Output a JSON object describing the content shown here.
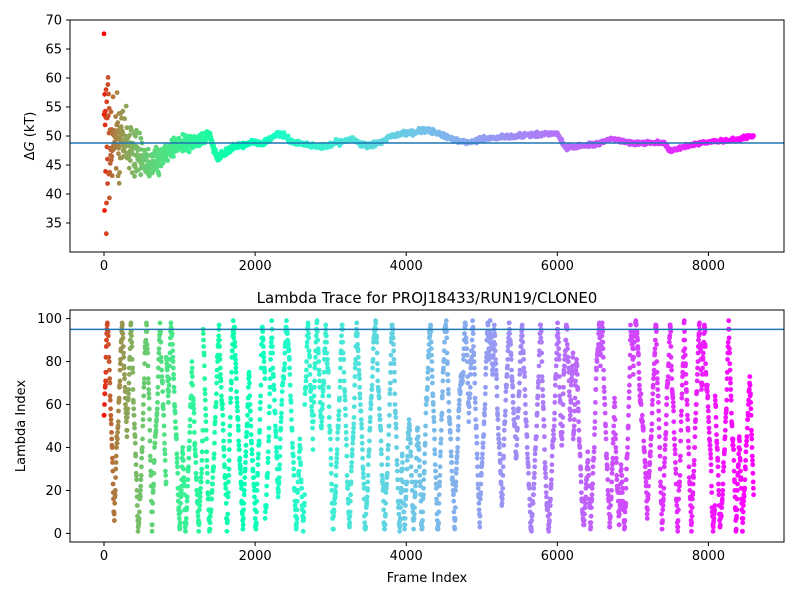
{
  "chart_data": [
    {
      "type": "scatter",
      "title": "",
      "xlabel": "",
      "ylabel": "ΔG (kT)",
      "xlim": [
        -450,
        9000
      ],
      "ylim": [
        30,
        70
      ],
      "xticks": [
        0,
        2000,
        4000,
        6000,
        8000
      ],
      "xtick_labels": [
        "0",
        "2000",
        "4000",
        "6000",
        "8000"
      ],
      "yticks": [
        35,
        40,
        45,
        50,
        55,
        60,
        65,
        70
      ],
      "ytick_labels": [
        "35",
        "40",
        "45",
        "50",
        "55",
        "60",
        "65",
        "70"
      ],
      "hline": 48.8,
      "hline_color": "#1f77b4",
      "colormap": "rainbow (frame index: red at 0 → violet at end)",
      "n_frames": 8600,
      "trace_knots": [
        [
          0,
          48
        ],
        [
          200,
          50
        ],
        [
          400,
          47
        ],
        [
          600,
          45
        ],
        [
          800,
          47
        ],
        [
          1000,
          48.5
        ],
        [
          1200,
          49
        ],
        [
          1400,
          50
        ],
        [
          1500,
          46
        ],
        [
          1700,
          48
        ],
        [
          2000,
          49
        ],
        [
          2100,
          48.5
        ],
        [
          2300,
          50.5
        ],
        [
          2500,
          49
        ],
        [
          2700,
          48.5
        ],
        [
          2900,
          48
        ],
        [
          3100,
          49
        ],
        [
          3300,
          49.5
        ],
        [
          3400,
          48.5
        ],
        [
          3600,
          48.5
        ],
        [
          3800,
          50
        ],
        [
          4000,
          50.5
        ],
        [
          4300,
          51
        ],
        [
          4600,
          49.5
        ],
        [
          4800,
          48.8
        ],
        [
          5000,
          49.5
        ],
        [
          5500,
          50
        ],
        [
          6000,
          50.5
        ],
        [
          6100,
          48
        ],
        [
          6500,
          48.5
        ],
        [
          6700,
          49.5
        ],
        [
          7000,
          48.8
        ],
        [
          7400,
          48.8
        ],
        [
          7500,
          47.5
        ],
        [
          7800,
          48.5
        ],
        [
          8000,
          49
        ],
        [
          8300,
          49.3
        ],
        [
          8600,
          50
        ]
      ],
      "early_spread": [
        [
          0,
          20
        ],
        [
          100,
          9
        ],
        [
          200,
          7
        ],
        [
          300,
          5
        ],
        [
          500,
          3
        ],
        [
          700,
          2
        ],
        [
          1000,
          1.5
        ],
        [
          1500,
          0.8
        ],
        [
          2000,
          0.5
        ],
        [
          8600,
          0.3
        ]
      ]
    },
    {
      "type": "scatter",
      "title": "Lambda Trace for PROJ18433/RUN19/CLONE0",
      "xlabel": "Frame Index",
      "ylabel": "Lambda Index",
      "xlim": [
        -450,
        9000
      ],
      "ylim": [
        -4,
        104
      ],
      "xticks": [
        0,
        2000,
        4000,
        6000,
        8000
      ],
      "xtick_labels": [
        "0",
        "2000",
        "4000",
        "6000",
        "8000"
      ],
      "yticks": [
        0,
        20,
        40,
        60,
        80,
        100
      ],
      "ytick_labels": [
        "0",
        "20",
        "40",
        "60",
        "80",
        "100"
      ],
      "hline": 95,
      "hline_color": "#1f77b4",
      "colormap": "rainbow (frame index: red at 0 → violet at end)",
      "lambda_range": [
        1,
        99
      ],
      "n_frames": 8600
    }
  ]
}
